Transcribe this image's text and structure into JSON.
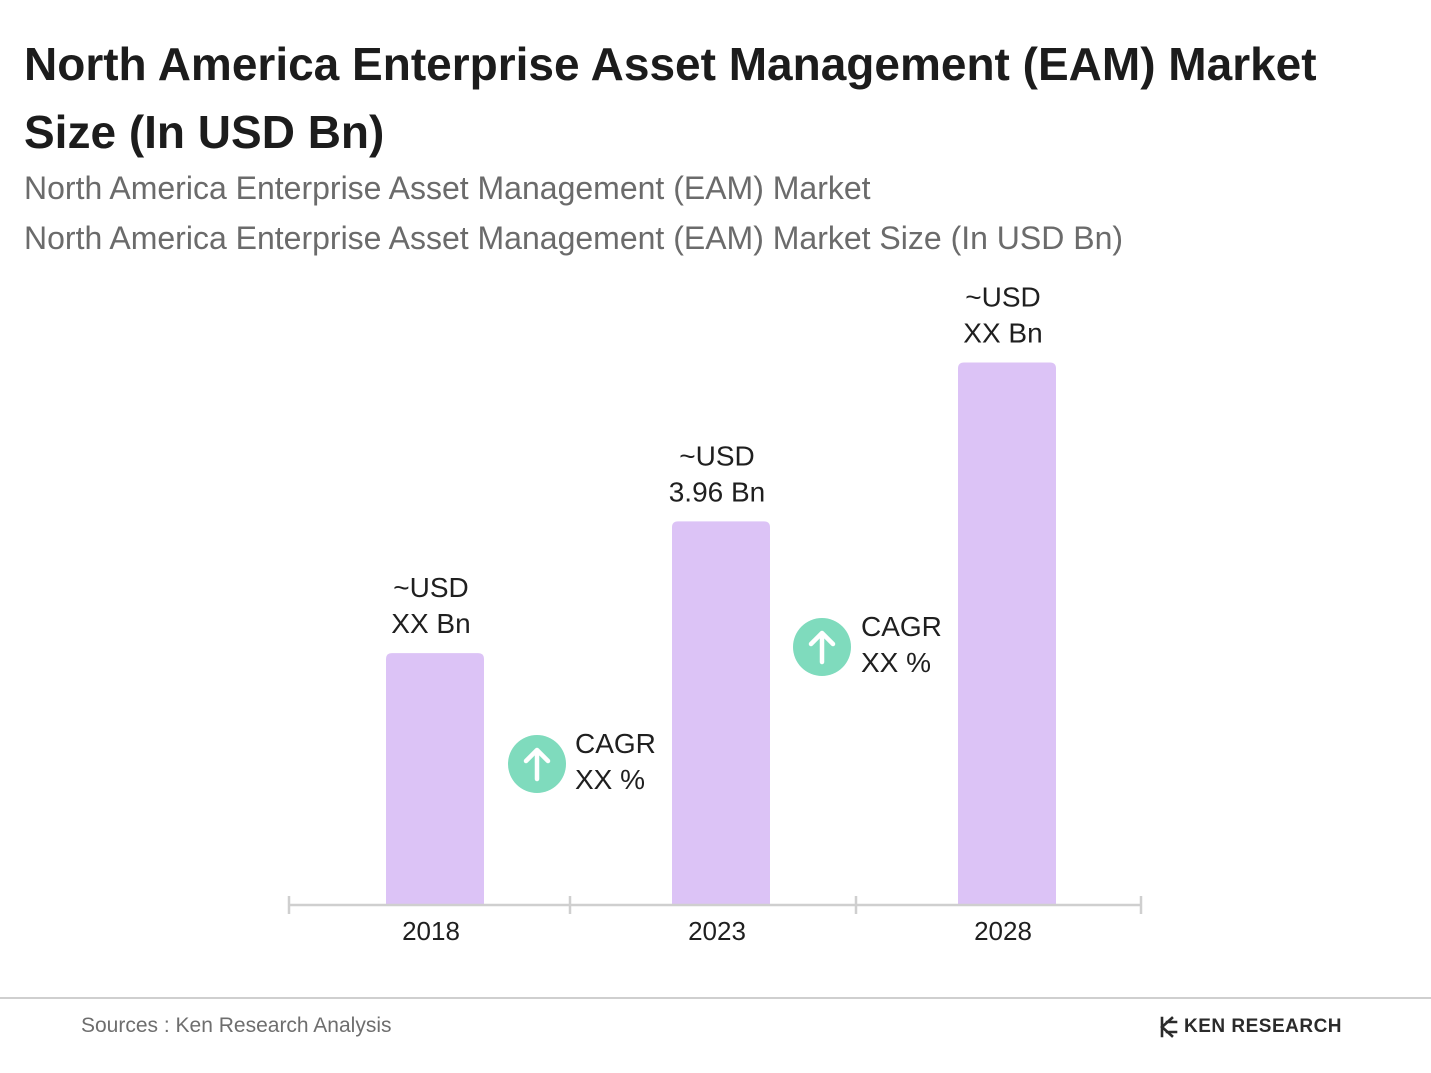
{
  "header": {
    "title": "North America Enterprise Asset Management (EAM) Market Size (In USD Bn)",
    "subtitle_1": "North America Enterprise Asset Management (EAM) Market",
    "subtitle_2": "North America Enterprise Asset Management (EAM) Market Size (In USD Bn)"
  },
  "chart_data": {
    "type": "bar",
    "categories": [
      "2018",
      "2023",
      "2028"
    ],
    "values": [
      2.6,
      3.96,
      5.6
    ],
    "value_labels": [
      [
        "~USD",
        "XX Bn"
      ],
      [
        "~USD",
        "3.96 Bn"
      ],
      [
        "~USD",
        "XX Bn"
      ]
    ],
    "cagr": [
      {
        "label": "CAGR",
        "value": "XX %",
        "between": [
          "2018",
          "2023"
        ]
      },
      {
        "label": "CAGR",
        "value": "XX %",
        "between": [
          "2023",
          "2028"
        ]
      }
    ],
    "title": "North America Enterprise Asset Management (EAM) Market Size (In USD Bn)",
    "xlabel": "",
    "ylabel": "",
    "ylim": [
      0,
      6.4
    ],
    "grid": false,
    "colors": {
      "bar": "#dcc3f6",
      "cagr_circle": "#7fdbbd",
      "axis": "#cfcfcf"
    }
  },
  "footer": {
    "source": "Sources : Ken Research Analysis",
    "brand": "KEN RESEARCH",
    "brand_icon": "ken-research-logo-icon"
  }
}
